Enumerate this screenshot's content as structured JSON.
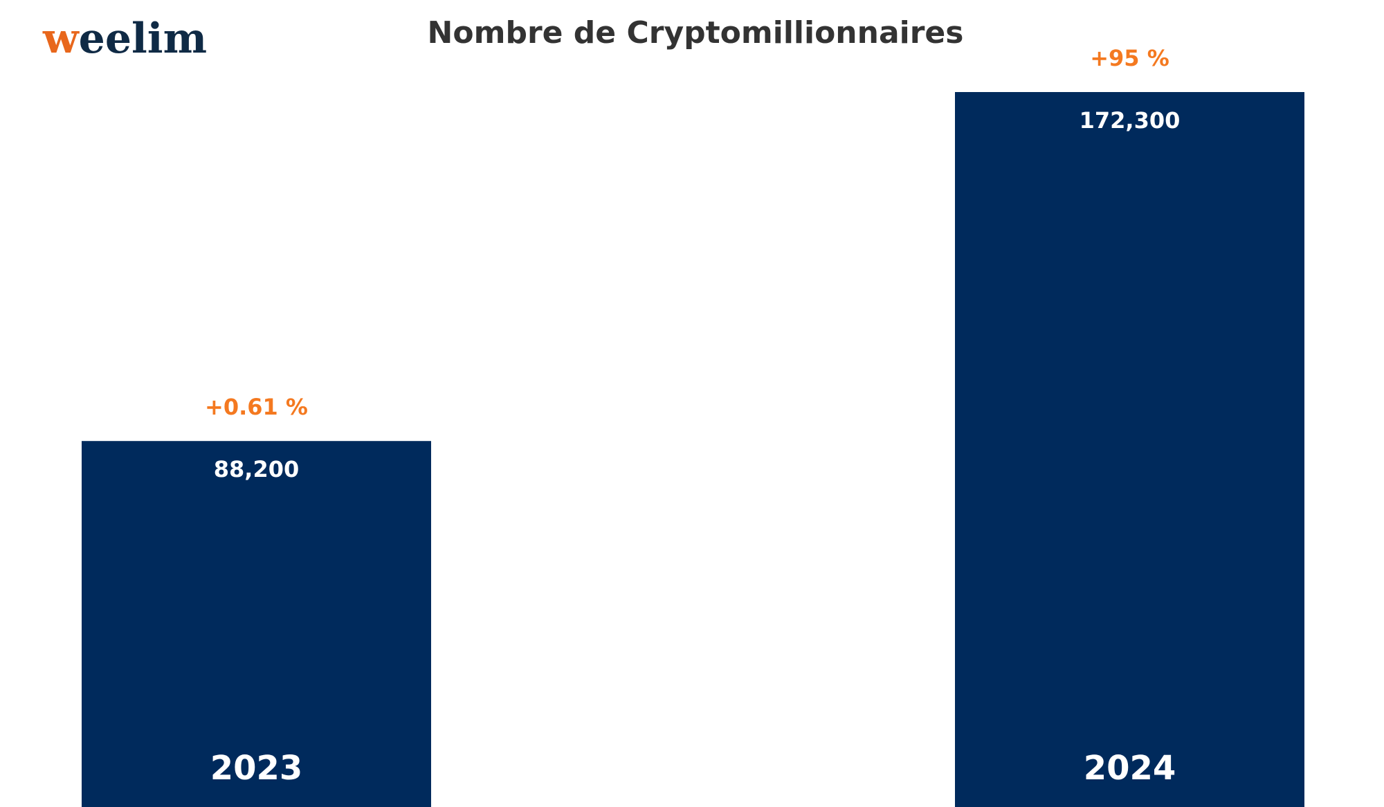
{
  "logo": {
    "text": "weelim",
    "accent_color": "#e8671c",
    "text_color": "#0f2a45"
  },
  "colors": {
    "bar": "#002a5c",
    "change_label": "#f47920",
    "title": "#333333"
  },
  "chart_data": {
    "type": "bar",
    "title": "Nombre de Cryptomillionnaires",
    "categories": [
      "2023",
      "2024"
    ],
    "values": [
      88200,
      172300
    ],
    "value_labels": [
      "88,200",
      "172,300"
    ],
    "change_labels": [
      "+0.61 %",
      "+95 %"
    ],
    "xlabel": "",
    "ylabel": "",
    "ylim": [
      0,
      172300
    ],
    "grid": false,
    "legend": "none"
  }
}
